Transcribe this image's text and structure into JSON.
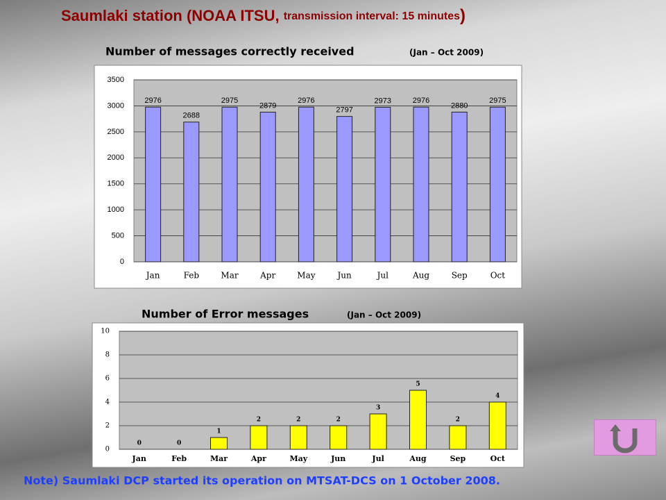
{
  "title": [
    "Saumlaki station (",
    "NOAA ITSU, ",
    "transmission interval: 15 minutes",
    ")"
  ],
  "note": "Note) Saumlaki DCP started its operation on MTSAT-DCS on 1 October 2008.",
  "chart_data": [
    {
      "type": "bar",
      "title": "Number of messages correctly received",
      "subtitle": "(Jan – Oct 2009)",
      "categories": [
        "Jan",
        "Feb",
        "Mar",
        "Apr",
        "May",
        "Jun",
        "Jul",
        "Aug",
        "Sep",
        "Oct"
      ],
      "values": [
        2976,
        2688,
        2975,
        2879,
        2976,
        2797,
        2973,
        2976,
        2880,
        2975
      ],
      "color": "#9999ff",
      "ylim": [
        0,
        3500
      ],
      "yticks": [
        0,
        500,
        1000,
        1500,
        2000,
        2500,
        3000,
        3500
      ],
      "grid": true
    },
    {
      "type": "bar",
      "title": "Number of Error messages",
      "subtitle": "(Jan – Oct 2009)",
      "categories": [
        "Jan",
        "Feb",
        "Mar",
        "Apr",
        "May",
        "Jun",
        "Jul",
        "Aug",
        "Sep",
        "Oct"
      ],
      "values": [
        0,
        0,
        1,
        2,
        2,
        2,
        3,
        5,
        2,
        4
      ],
      "color": "#ffff00",
      "ylim": [
        0,
        10
      ],
      "yticks": [
        0,
        2,
        4,
        6,
        8,
        10
      ],
      "grid": true
    }
  ]
}
